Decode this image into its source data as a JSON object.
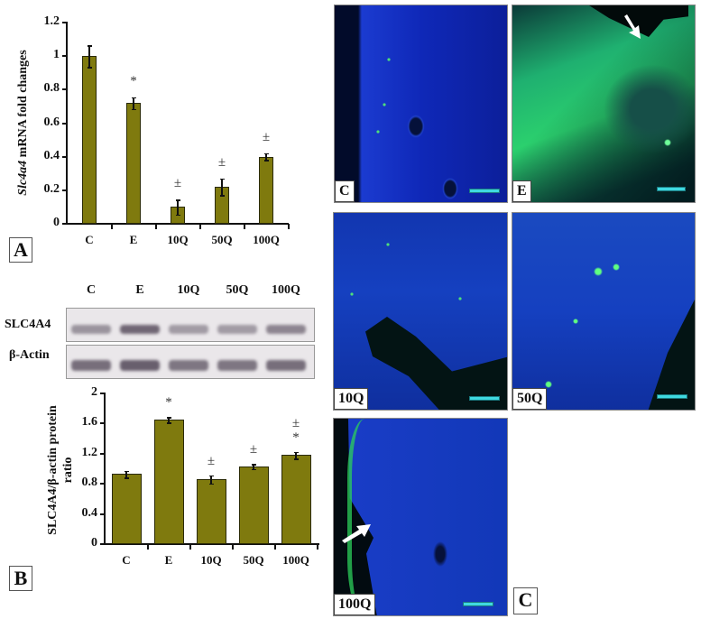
{
  "panels": {
    "A": {
      "letter": "A"
    },
    "B": {
      "letter": "B"
    },
    "C": {
      "letter": "C"
    }
  },
  "chart_data": [
    {
      "type": "bar",
      "panel": "A",
      "title": "",
      "ylabel": "Slc4a4 mRNA fold changes",
      "ylabel_italic": "Slc4a4",
      "ylabel_rest": " mRNA fold changes",
      "xlabel": "",
      "categories": [
        "C",
        "E",
        "10Q",
        "50Q",
        "100Q"
      ],
      "values": [
        1.0,
        0.72,
        0.1,
        0.22,
        0.4
      ],
      "errors": [
        0.065,
        0.035,
        0.045,
        0.05,
        0.02
      ],
      "annotations": [
        "",
        "*",
        "±",
        "±",
        "±"
      ],
      "ylim": [
        0,
        1.2
      ],
      "yticks": [
        "0",
        "0.2",
        "0.4",
        "0.6",
        "0.8",
        "1",
        "1.2"
      ],
      "grid": false,
      "bar_color": "#7f7a0e"
    },
    {
      "type": "bar",
      "panel": "B",
      "title": "",
      "ylabel": "SLC4A4/β-actin protein ratio",
      "ylabel_line1": "SLC4A4/β-actin protein",
      "ylabel_line2": "ratio",
      "xlabel": "",
      "categories": [
        "C",
        "E",
        "10Q",
        "50Q",
        "100Q"
      ],
      "values": [
        0.93,
        1.65,
        0.86,
        1.03,
        1.18
      ],
      "errors": [
        0.045,
        0.035,
        0.055,
        0.035,
        0.045
      ],
      "annotations": [
        "",
        "*",
        "±",
        "±",
        "±\n*"
      ],
      "annotation_top": [
        "",
        "*",
        "±",
        "±",
        "±"
      ],
      "annotation_bottom": [
        "",
        "",
        "",
        "",
        "*"
      ],
      "ylim": [
        0,
        2
      ],
      "yticks": [
        "0",
        "0.4",
        "0.8",
        "1.2",
        "1.6",
        "2"
      ],
      "grid": false,
      "bar_color": "#7f7a0e"
    }
  ],
  "western_blot": {
    "lanes": [
      "C",
      "E",
      "10Q",
      "50Q",
      "100Q"
    ],
    "rows": [
      {
        "label": "SLC4A4"
      },
      {
        "label": "β-Actin"
      }
    ]
  },
  "micrographs": [
    {
      "label": "C",
      "arrow": false
    },
    {
      "label": "E",
      "arrow": true
    },
    {
      "label": "10Q",
      "arrow": false
    },
    {
      "label": "50Q",
      "arrow": false
    },
    {
      "label": "100Q",
      "arrow": true
    }
  ]
}
